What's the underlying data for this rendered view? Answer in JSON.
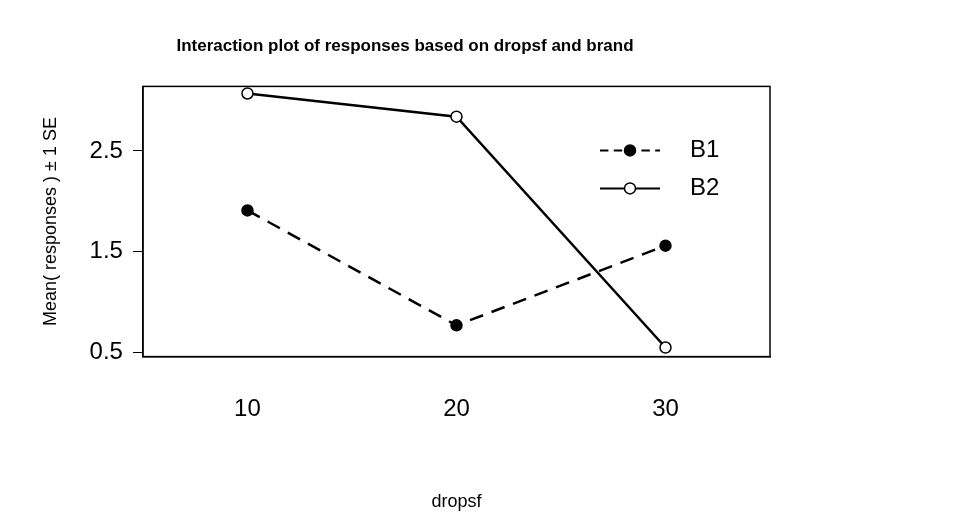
{
  "chart_data": {
    "type": "line",
    "title": "Interaction plot of responses based on dropsf and brand",
    "x_label": "dropsf",
    "y_label": "Mean( responses ) ± 1 SE",
    "categories": [
      "10",
      "20",
      "30"
    ],
    "series": [
      {
        "name": "B1",
        "color": "#000000",
        "marker": "filled_circle",
        "line_style": "dashed",
        "values": [
          1.91,
          0.77,
          1.56
        ]
      },
      {
        "name": "B2",
        "color": "#000000",
        "marker": "open_circle",
        "line_style": "solid",
        "values": [
          3.07,
          2.84,
          0.55
        ]
      }
    ],
    "ylim": [
      0.46,
      3.14
    ],
    "yticks": [
      0.5,
      1.5,
      2.5
    ],
    "grid": false,
    "legend": "top right"
  }
}
